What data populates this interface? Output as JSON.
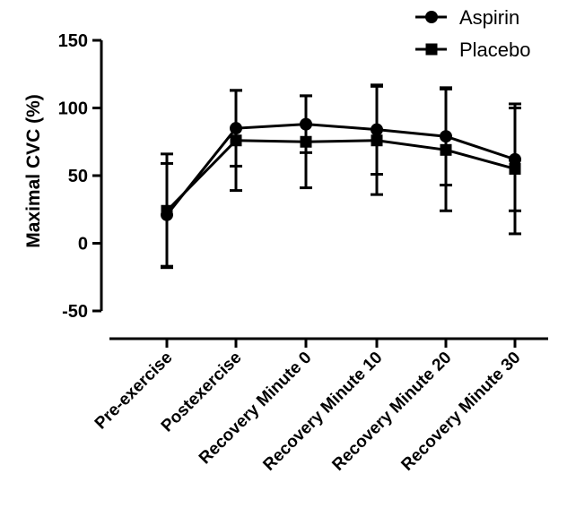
{
  "chart_data": {
    "type": "line",
    "title": "",
    "xlabel": "",
    "ylabel": "Maximal CVC (%)",
    "ylim": [
      -50,
      150
    ],
    "yticks": [
      -50,
      0,
      50,
      100,
      150
    ],
    "categories": [
      "Pre-exercise",
      "Postexercise",
      "Recovery Minute 0",
      "Recovery Minute 10",
      "Recovery Minute 20",
      "Recovery Minute 30"
    ],
    "grid": false,
    "legend_position": "top-right",
    "series": [
      {
        "name": "Aspirin",
        "marker": "circle",
        "color": "#000000",
        "values": [
          21,
          85,
          88,
          84,
          79,
          62
        ],
        "error": [
          38,
          28,
          21,
          33,
          36,
          38
        ]
      },
      {
        "name": "Placebo",
        "marker": "square",
        "color": "#000000",
        "values": [
          24,
          76,
          75,
          76,
          69,
          55
        ],
        "error": [
          42,
          37,
          34,
          40,
          45,
          48
        ]
      }
    ]
  }
}
